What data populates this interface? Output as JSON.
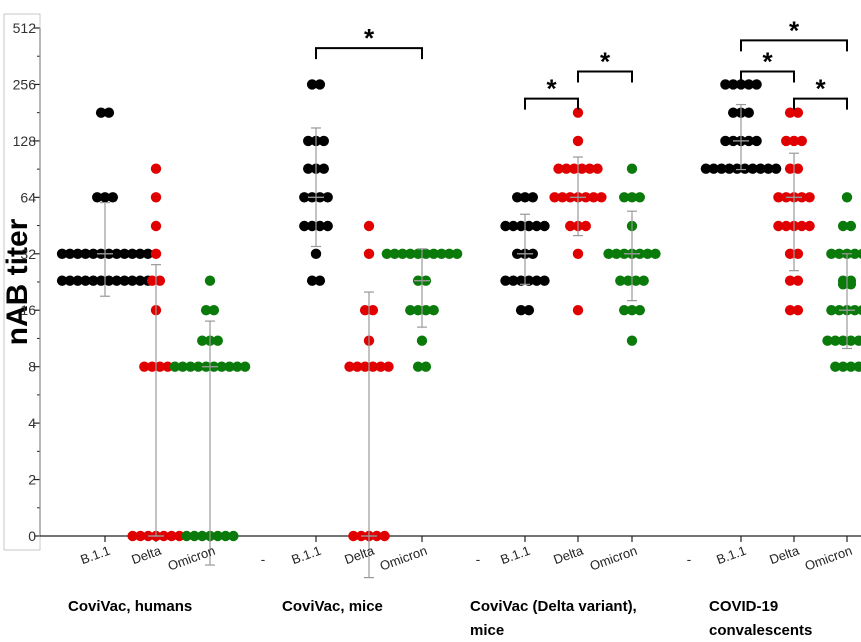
{
  "chart_data": {
    "type": "scatter",
    "ylabel": "nAB titer",
    "y_scale": "log2",
    "ylim": [
      0,
      512
    ],
    "y_ticks": [
      {
        "value": 0,
        "label": "0"
      },
      {
        "value": 2,
        "label": "2"
      },
      {
        "value": 4,
        "label": "4"
      },
      {
        "value": 8,
        "label": "8"
      },
      {
        "value": 16,
        "label": "16"
      },
      {
        "value": 32,
        "label": "32"
      },
      {
        "value": 64,
        "label": "64"
      },
      {
        "value": 128,
        "label": "128"
      },
      {
        "value": 256,
        "label": "256"
      },
      {
        "value": 512,
        "label": "512"
      }
    ],
    "colors": {
      "B.1.1": "#000000",
      "Delta": "#e00000",
      "Omicron": "#0a7a0a",
      "error": "#999999"
    },
    "groups": [
      {
        "label": "CoviVac, humans",
        "series": [
          {
            "name": "B.1.1",
            "mean": 32,
            "err": [
              19,
              60
            ],
            "points": [
              [
                181,
                2
              ],
              [
                64,
                3
              ],
              [
                32,
                12
              ],
              [
                23,
                12
              ]
            ]
          },
          {
            "name": "Delta",
            "mean": 0,
            "err": [
              0,
              28
            ],
            "points": [
              [
                91,
                1
              ],
              [
                64,
                1
              ],
              [
                45,
                1
              ],
              [
                32,
                1
              ],
              [
                23,
                2
              ],
              [
                16,
                1
              ],
              [
                8,
                4
              ],
              [
                0,
                7
              ]
            ]
          },
          {
            "name": "Omicron",
            "mean": 8,
            "err": [
              0.7,
              14
            ],
            "points": [
              [
                23,
                1
              ],
              [
                16,
                2
              ],
              [
                11,
                3
              ],
              [
                8,
                10
              ],
              [
                0,
                7
              ]
            ]
          }
        ],
        "brackets": []
      },
      {
        "label": "CoviVac, mice",
        "series": [
          {
            "name": "B.1.1",
            "mean": 64,
            "err": [
              35,
              150
            ],
            "points": [
              [
                256,
                2
              ],
              [
                128,
                3
              ],
              [
                91,
                3
              ],
              [
                64,
                4
              ],
              [
                45,
                4
              ],
              [
                32,
                1
              ],
              [
                23,
                2
              ]
            ]
          },
          {
            "name": "Delta",
            "mean": 0,
            "err": [
              0.6,
              20
            ],
            "points": [
              [
                45,
                1
              ],
              [
                32,
                1
              ],
              [
                16,
                2
              ],
              [
                11,
                1
              ],
              [
                8,
                6
              ],
              [
                0,
                5
              ]
            ]
          },
          {
            "name": "Omicron",
            "mean": 23,
            "err": [
              13,
              34
            ],
            "points": [
              [
                32,
                10
              ],
              [
                23,
                2
              ],
              [
                16,
                4
              ],
              [
                11,
                1
              ],
              [
                8,
                2
              ]
            ]
          }
        ],
        "brackets": [
          {
            "from": "B.1.1",
            "to": "Omicron",
            "level": 400,
            "label": "*"
          }
        ]
      },
      {
        "label": "CoviVac (Delta variant), mice",
        "series": [
          {
            "name": "B.1.1",
            "mean": 32,
            "err": [
              22,
              52
            ],
            "points": [
              [
                64,
                3
              ],
              [
                45,
                6
              ],
              [
                32,
                3
              ],
              [
                23,
                6
              ],
              [
                16,
                2
              ]
            ]
          },
          {
            "name": "Delta",
            "mean": 64,
            "err": [
              40,
              105
            ],
            "points": [
              [
                181,
                1
              ],
              [
                128,
                1
              ],
              [
                91,
                6
              ],
              [
                64,
                7
              ],
              [
                45,
                3
              ],
              [
                32,
                1
              ],
              [
                16,
                1
              ]
            ]
          },
          {
            "name": "Omicron",
            "mean": 32,
            "err": [
              18,
              54
            ],
            "points": [
              [
                91,
                1
              ],
              [
                64,
                3
              ],
              [
                45,
                1
              ],
              [
                32,
                7
              ],
              [
                23,
                4
              ],
              [
                16,
                3
              ],
              [
                11,
                1
              ]
            ]
          }
        ],
        "brackets": [
          {
            "from": "B.1.1",
            "to": "Delta",
            "level": 215,
            "label": "*"
          },
          {
            "from": "Delta",
            "to": "Omicron",
            "level": 300,
            "label": "*"
          }
        ]
      },
      {
        "label": "COVID-19 convalescents",
        "series": [
          {
            "name": "B.1.1",
            "mean": 128,
            "err": [
              90,
              200
            ],
            "points": [
              [
                256,
                5
              ],
              [
                181,
                3
              ],
              [
                128,
                5
              ],
              [
                91,
                10
              ]
            ]
          },
          {
            "name": "Delta",
            "mean": 64,
            "err": [
              26,
              110
            ],
            "points": [
              [
                181,
                2
              ],
              [
                128,
                3
              ],
              [
                91,
                2
              ],
              [
                64,
                5
              ],
              [
                45,
                5
              ],
              [
                32,
                2
              ],
              [
                23,
                2
              ],
              [
                16,
                2
              ]
            ]
          },
          {
            "name": "Omicron",
            "mean": 16,
            "err": [
              10,
              32
            ],
            "points": [
              [
                64,
                1
              ],
              [
                45,
                2
              ],
              [
                32,
                5
              ],
              [
                23,
                2
              ],
              [
                22,
                2
              ],
              [
                16,
                5
              ],
              [
                11,
                6
              ],
              [
                8,
                4
              ]
            ]
          }
        ],
        "brackets": [
          {
            "from": "B.1.1",
            "to": "Omicron",
            "level": 440,
            "label": "*"
          },
          {
            "from": "B.1.1",
            "to": "Delta",
            "level": 300,
            "label": "*"
          },
          {
            "from": "Delta",
            "to": "Omicron",
            "level": 215,
            "label": "*"
          }
        ]
      }
    ]
  }
}
